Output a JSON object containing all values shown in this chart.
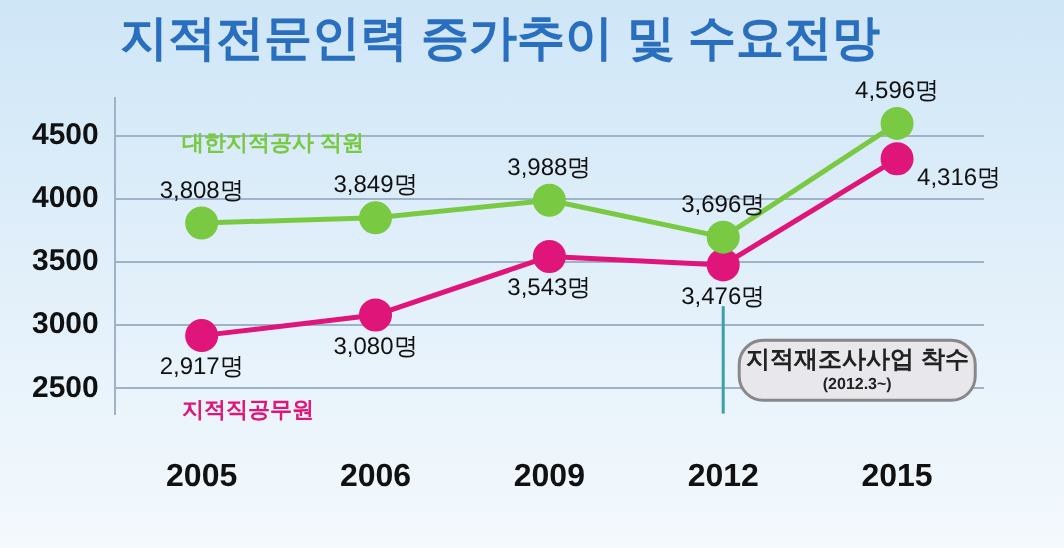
{
  "chart_data": {
    "type": "line",
    "title": "지적전문인력 증가추이 및 수요전망",
    "categories": [
      "2005",
      "2006",
      "2009",
      "2012",
      "2015"
    ],
    "series": [
      {
        "name": "대한지적공사 직원",
        "color": "#7ac943",
        "values": [
          3808,
          3849,
          3988,
          3696,
          4596
        ],
        "value_labels": [
          "3,808명",
          "3,849명",
          "3,988명",
          "3,696명",
          "4,596명"
        ]
      },
      {
        "name": "지적직공무원",
        "color": "#e0157a",
        "values": [
          2917,
          3080,
          3543,
          3476,
          4316
        ],
        "value_labels": [
          "2,917명",
          "3,080명",
          "3,543명",
          "3,476명",
          "4,316명"
        ]
      }
    ],
    "ylim": [
      2300,
      4800
    ],
    "yticks": [
      2500,
      3000,
      3500,
      4000,
      4500
    ],
    "grid": "y",
    "legend": false,
    "marker": "circle",
    "line_style": "solid",
    "ref_lines": [
      {
        "axis": "x",
        "value": "2012",
        "label": "지적재조사사업 착수",
        "color": "#3aa0b0"
      }
    ],
    "annotations": [
      "(2012.3~)"
    ]
  }
}
